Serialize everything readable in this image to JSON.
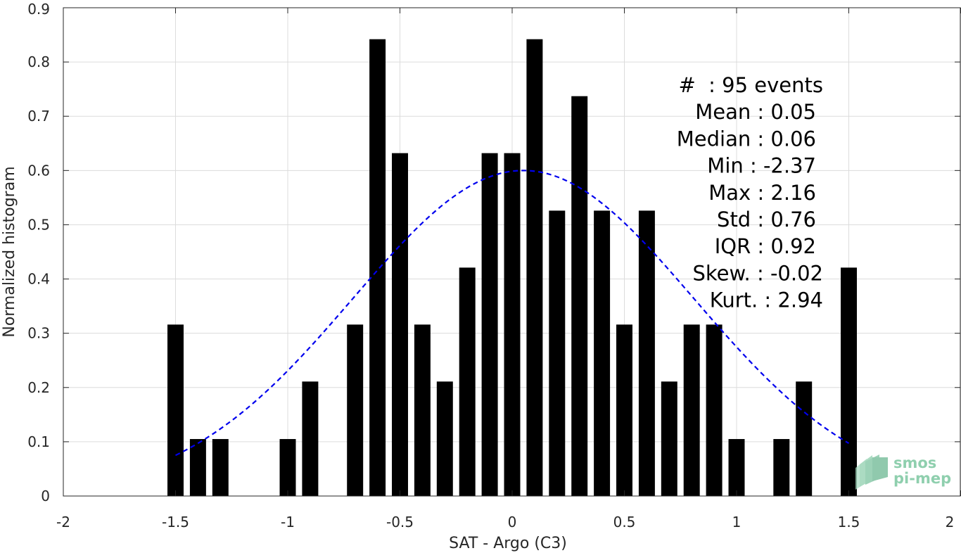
{
  "chart_data": {
    "type": "bar",
    "title": "",
    "xlabel": "SAT - Argo (C3)",
    "ylabel": "Normalized histogram",
    "xlim": [
      -2,
      2
    ],
    "ylim": [
      0,
      0.9
    ],
    "xticks": [
      "-2",
      "-1.5",
      "-1",
      "-0.5",
      "0",
      "0.5",
      "1",
      "1.5",
      "2"
    ],
    "yticks": [
      "0",
      "0.1",
      "0.2",
      "0.3",
      "0.4",
      "0.5",
      "0.6",
      "0.7",
      "0.8",
      "0.9"
    ],
    "grid": true,
    "bar_color": "#000000",
    "bins": [
      {
        "x": -1.5,
        "value": 0.316
      },
      {
        "x": -1.4,
        "value": 0.105
      },
      {
        "x": -1.3,
        "value": 0.105
      },
      {
        "x": -1.0,
        "value": 0.105
      },
      {
        "x": -0.9,
        "value": 0.211
      },
      {
        "x": -0.7,
        "value": 0.316
      },
      {
        "x": -0.6,
        "value": 0.842
      },
      {
        "x": -0.5,
        "value": 0.632
      },
      {
        "x": -0.4,
        "value": 0.316
      },
      {
        "x": -0.3,
        "value": 0.211
      },
      {
        "x": -0.2,
        "value": 0.421
      },
      {
        "x": -0.1,
        "value": 0.632
      },
      {
        "x": 0.0,
        "value": 0.632
      },
      {
        "x": 0.1,
        "value": 0.842
      },
      {
        "x": 0.2,
        "value": 0.526
      },
      {
        "x": 0.3,
        "value": 0.737
      },
      {
        "x": 0.4,
        "value": 0.526
      },
      {
        "x": 0.5,
        "value": 0.316
      },
      {
        "x": 0.6,
        "value": 0.526
      },
      {
        "x": 0.7,
        "value": 0.211
      },
      {
        "x": 0.8,
        "value": 0.316
      },
      {
        "x": 0.9,
        "value": 0.316
      },
      {
        "x": 1.0,
        "value": 0.105
      },
      {
        "x": 1.2,
        "value": 0.105
      },
      {
        "x": 1.3,
        "value": 0.211
      },
      {
        "x": 1.5,
        "value": 0.421
      }
    ],
    "fit_curve": {
      "style": "dashed",
      "color": "#0000ee",
      "mean": 0.05,
      "std": 0.76,
      "x_range": [
        -1.5,
        1.5
      ],
      "peak": 0.6
    },
    "stats": [
      "#  : 95 events",
      "Mean : 0.05",
      "Median : 0.06",
      "Min : -2.37",
      "Max : 2.16",
      "Std : 0.76",
      "IQR : 0.92",
      "Skew. : -0.02",
      "Kurt. : 2.94"
    ]
  },
  "logo": {
    "line1": "smos",
    "line2": "pi-mep",
    "color": "#8fcfae"
  }
}
